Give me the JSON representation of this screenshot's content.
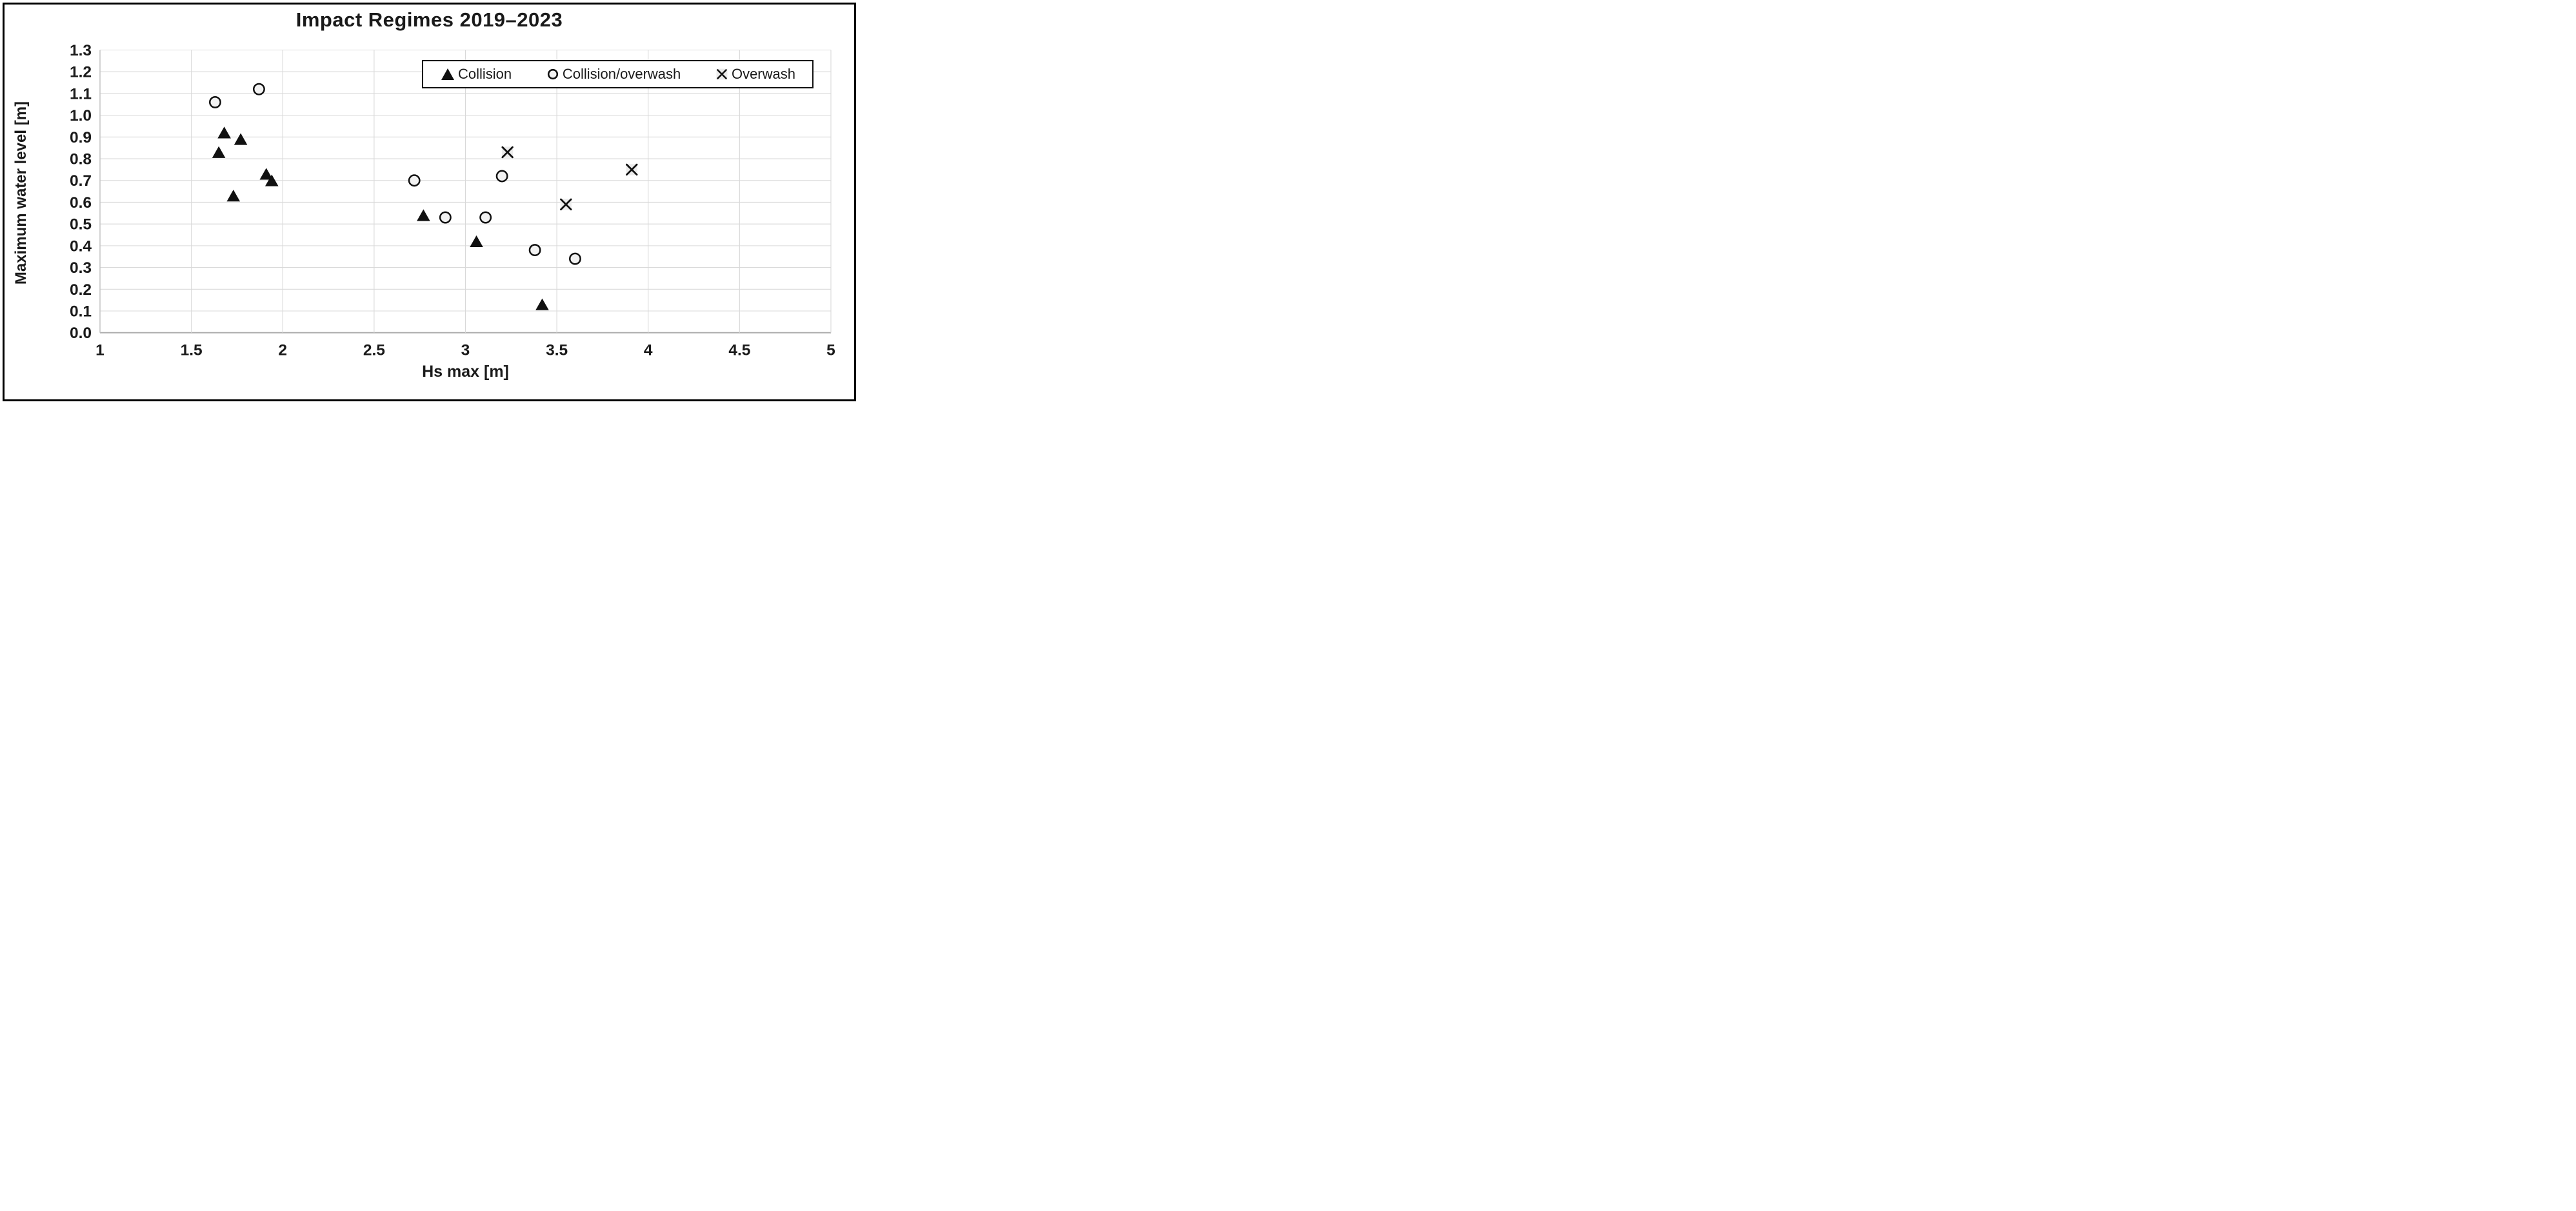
{
  "chart": {
    "title": "Impact Regimes 2019–2023"
  },
  "colors": {
    "gridline": "#D9D9D9",
    "axis_line": "#ABABAB",
    "plot_left_edge": "#C4C4C4",
    "text": "#1a1a1a",
    "marker_stroke": "#111111",
    "circle_fill": "#F2F2F2",
    "x_shadow": "#ECECEC",
    "chart_border": "#000000",
    "legend_border": "#111111"
  },
  "chart_data": {
    "type": "scatter",
    "title": "Impact Regimes 2019–2023",
    "xlabel": "Hs max [m]",
    "ylabel": "Maximum water level [m]",
    "xlim": [
      1,
      5
    ],
    "ylim": [
      0.0,
      1.3
    ],
    "grid": true,
    "legend_position": "top-right-inside",
    "x_ticks": {
      "values": [
        1,
        1.5,
        2,
        2.5,
        3,
        3.5,
        4,
        4.5,
        5
      ],
      "labels": [
        "1",
        "1.5",
        "2",
        "2.5",
        "3",
        "3.5",
        "4",
        "4.5",
        "5"
      ]
    },
    "y_ticks": {
      "values": [
        0.0,
        0.1,
        0.2,
        0.3,
        0.4,
        0.5,
        0.6,
        0.7,
        0.8,
        0.9,
        1.0,
        1.1,
        1.2,
        1.3
      ],
      "labels": [
        "0.0",
        "0.1",
        "0.2",
        "0.3",
        "0.4",
        "0.5",
        "0.6",
        "0.7",
        "0.8",
        "0.9",
        "1.0",
        "1.1",
        "1.2",
        "1.3"
      ]
    },
    "series": [
      {
        "name": "Collision",
        "marker": "filled-triangle",
        "points": [
          [
            1.65,
            0.83
          ],
          [
            1.68,
            0.92
          ],
          [
            1.73,
            0.63
          ],
          [
            1.77,
            0.89
          ],
          [
            1.91,
            0.73
          ],
          [
            1.94,
            0.7
          ],
          [
            2.77,
            0.54
          ],
          [
            3.06,
            0.42
          ],
          [
            3.42,
            0.13
          ]
        ]
      },
      {
        "name": "Collision/overwash",
        "marker": "open-circle",
        "points": [
          [
            1.63,
            1.06
          ],
          [
            1.87,
            1.12
          ],
          [
            2.72,
            0.7
          ],
          [
            2.89,
            0.53
          ],
          [
            3.11,
            0.53
          ],
          [
            3.2,
            0.72
          ],
          [
            3.38,
            0.38
          ],
          [
            3.6,
            0.34
          ]
        ]
      },
      {
        "name": "Overwash",
        "marker": "x-cross",
        "points": [
          [
            3.23,
            0.83
          ],
          [
            3.55,
            0.59
          ],
          [
            3.91,
            0.75
          ]
        ]
      }
    ]
  }
}
